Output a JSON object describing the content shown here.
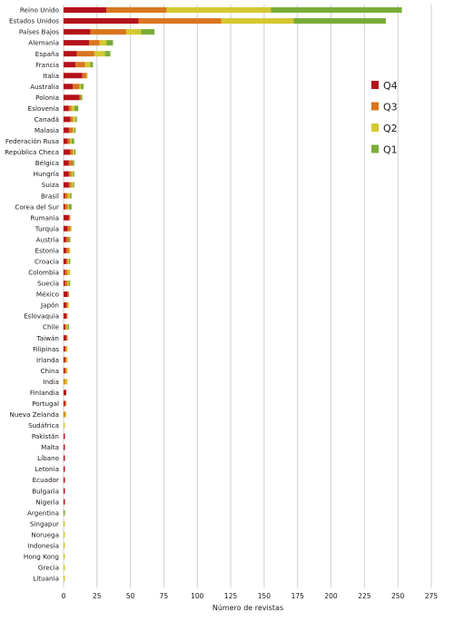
{
  "chart_data": {
    "type": "bar",
    "orientation": "horizontal",
    "stacked": true,
    "xlabel": "Número de revistas",
    "xlim": [
      0,
      275
    ],
    "xticks": [
      0,
      25,
      50,
      75,
      100,
      125,
      150,
      175,
      200,
      225,
      250,
      275
    ],
    "grid": "vertical",
    "legend_position": "right",
    "categories": [
      "Reino Unido",
      "Estados Unidos",
      "Países Bajos",
      "Alemania",
      "España",
      "Francia",
      "Italia",
      "Australia",
      "Polonia",
      "Eslovenia",
      "Canadá",
      "Malasia",
      "Federación Rusa",
      "República Checa",
      "Bélgica",
      "Hungría",
      "Suiza",
      "Brasil",
      "Corea del Sur",
      "Rumania",
      "Turquía",
      "Austria",
      "Estonia",
      "Croacia",
      "Colombia",
      "Suecia",
      "México",
      "Japón",
      "Eslovaquia",
      "Chile",
      "Taiwán",
      "Filipinas",
      "Irlanda",
      "China",
      "India",
      "Finlandia",
      "Portugal",
      "Nueva Zelanda",
      "Sudáfrica",
      "Pakistán",
      "Malta",
      "Líbano",
      "Letonia",
      "Ecuador",
      "Bulgaria",
      "Nigeria",
      "Argentina",
      "Singapur",
      "Noruega",
      "Indonesia",
      "Hong Kong",
      "Grecia",
      "Lituania"
    ],
    "series": [
      {
        "name": "Q4",
        "color": "#b5121b",
        "values": [
          32,
          56,
          20,
          19,
          10,
          9,
          14,
          7,
          12,
          4,
          5,
          4,
          3,
          5,
          4,
          4,
          4,
          1,
          1,
          4,
          3,
          2,
          2,
          2,
          1,
          1,
          3,
          2,
          2,
          1,
          2,
          1,
          1,
          1,
          0,
          2,
          1,
          0,
          0,
          1,
          1,
          1,
          1,
          1,
          1,
          1,
          0,
          0,
          0,
          0,
          0,
          0,
          0
        ]
      },
      {
        "name": "Q3",
        "color": "#d9761f",
        "values": [
          45,
          62,
          27,
          8,
          13,
          7,
          3,
          5,
          1,
          2,
          2,
          3,
          2,
          2,
          3,
          2,
          2,
          2,
          2,
          1,
          2,
          2,
          2,
          1,
          2,
          2,
          1,
          1,
          1,
          1,
          1,
          1,
          1,
          1,
          1,
          0,
          1,
          1,
          0,
          0,
          0,
          0,
          0,
          0,
          0,
          0,
          0,
          0,
          0,
          0,
          0,
          0,
          0
        ]
      },
      {
        "name": "Q2",
        "color": "#d4c832",
        "values": [
          78,
          54,
          11,
          5,
          8,
          4,
          1,
          1,
          0,
          2,
          2,
          1,
          1,
          1,
          0,
          1,
          1,
          2,
          1,
          0,
          1,
          0,
          1,
          1,
          2,
          1,
          0,
          1,
          0,
          1,
          0,
          1,
          1,
          1,
          2,
          0,
          0,
          1,
          1,
          0,
          0,
          0,
          0,
          0,
          0,
          0,
          0,
          1,
          1,
          1,
          1,
          1,
          1
        ]
      },
      {
        "name": "Q1",
        "color": "#7aac38",
        "values": [
          98,
          69,
          10,
          5,
          4,
          2,
          0,
          2,
          1,
          3,
          1,
          1,
          2,
          1,
          1,
          1,
          1,
          1,
          2,
          0,
          0,
          1,
          0,
          1,
          0,
          1,
          0,
          0,
          0,
          1,
          0,
          0,
          0,
          0,
          0,
          0,
          0,
          0,
          0,
          0,
          0,
          0,
          0,
          0,
          0,
          0,
          1,
          0,
          0,
          0,
          0,
          0,
          0
        ]
      }
    ],
    "legend_order": [
      "Q4",
      "Q3",
      "Q2",
      "Q1"
    ]
  }
}
